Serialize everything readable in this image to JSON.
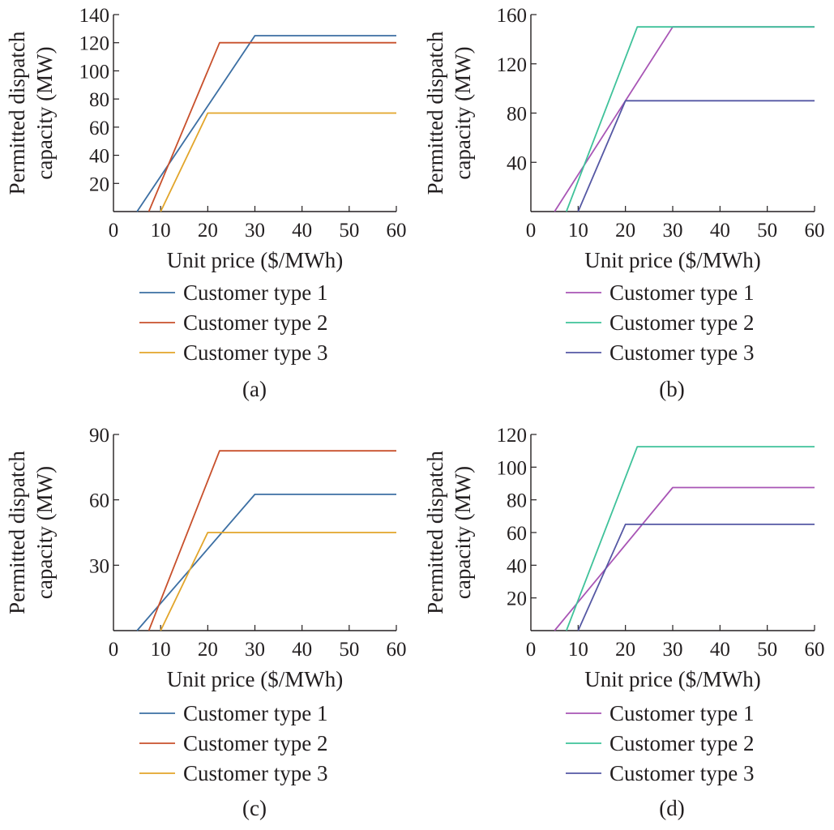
{
  "chart_data": [
    {
      "type": "line",
      "panel_label": "(a)",
      "xlabel": "Unit price ($/MWh)",
      "ylabel_lines": [
        "Permitted dispatch",
        "capacity (MW)"
      ],
      "xlim": [
        0,
        60
      ],
      "ylim": [
        0,
        140
      ],
      "xticks": [
        0,
        10,
        20,
        30,
        40,
        50,
        60
      ],
      "yticks": [
        20,
        40,
        60,
        80,
        100,
        120,
        140
      ],
      "grid": false,
      "legend_position": "below",
      "series": [
        {
          "name": "Customer type 1",
          "color": "#3c6fa3",
          "x": [
            5,
            30,
            60
          ],
          "y": [
            0,
            125,
            125
          ]
        },
        {
          "name": "Customer type 2",
          "color": "#c8502c",
          "x": [
            7.5,
            22.5,
            60
          ],
          "y": [
            0,
            120,
            120
          ]
        },
        {
          "name": "Customer type 3",
          "color": "#e2a52a",
          "x": [
            10,
            20,
            60
          ],
          "y": [
            0,
            70,
            70
          ]
        }
      ]
    },
    {
      "type": "line",
      "panel_label": "(b)",
      "xlabel": "Unit price ($/MWh)",
      "ylabel_lines": [
        "Permitted dispatch",
        "capacity (MW)"
      ],
      "xlim": [
        0,
        60
      ],
      "ylim": [
        0,
        160
      ],
      "xticks": [
        0,
        10,
        20,
        30,
        40,
        50,
        60
      ],
      "yticks": [
        40,
        80,
        120,
        160
      ],
      "grid": false,
      "legend_position": "below",
      "series": [
        {
          "name": "Customer type 1",
          "color": "#a855b5",
          "x": [
            5,
            30,
            60
          ],
          "y": [
            0,
            150,
            150
          ]
        },
        {
          "name": "Customer type 2",
          "color": "#3fc29a",
          "x": [
            7.5,
            22.5,
            60
          ],
          "y": [
            0,
            150,
            150
          ]
        },
        {
          "name": "Customer type 3",
          "color": "#5558a4",
          "x": [
            10,
            20,
            60
          ],
          "y": [
            0,
            90,
            90
          ]
        }
      ]
    },
    {
      "type": "line",
      "panel_label": "(c)",
      "xlabel": "Unit price ($/MWh)",
      "ylabel_lines": [
        "Permitted dispatch",
        "capacity (MW)"
      ],
      "xlim": [
        0,
        60
      ],
      "ylim": [
        0,
        90
      ],
      "xticks": [
        0,
        10,
        20,
        30,
        40,
        50,
        60
      ],
      "yticks": [
        30,
        60,
        90
      ],
      "grid": false,
      "legend_position": "below",
      "series": [
        {
          "name": "Customer type 1",
          "color": "#3c6fa3",
          "x": [
            5,
            30,
            60
          ],
          "y": [
            0,
            62.5,
            62.5
          ]
        },
        {
          "name": "Customer type 2",
          "color": "#c8502c",
          "x": [
            7.5,
            22.5,
            60
          ],
          "y": [
            0,
            82.5,
            82.5
          ]
        },
        {
          "name": "Customer type 3",
          "color": "#e2a52a",
          "x": [
            10,
            20,
            60
          ],
          "y": [
            0,
            45,
            45
          ]
        }
      ]
    },
    {
      "type": "line",
      "panel_label": "(d)",
      "xlabel": "Unit price ($/MWh)",
      "ylabel_lines": [
        "Permitted dispatch",
        "capacity (MW)"
      ],
      "xlim": [
        0,
        60
      ],
      "ylim": [
        0,
        120
      ],
      "xticks": [
        0,
        10,
        20,
        30,
        40,
        50,
        60
      ],
      "yticks": [
        20,
        40,
        60,
        80,
        100,
        120
      ],
      "grid": false,
      "legend_position": "below",
      "series": [
        {
          "name": "Customer type 1",
          "color": "#a855b5",
          "x": [
            5,
            30,
            60
          ],
          "y": [
            0,
            87.5,
            87.5
          ]
        },
        {
          "name": "Customer type 2",
          "color": "#3fc29a",
          "x": [
            7.5,
            22.5,
            60
          ],
          "y": [
            0,
            112.5,
            112.5
          ]
        },
        {
          "name": "Customer type 3",
          "color": "#5558a4",
          "x": [
            10,
            20,
            60
          ],
          "y": [
            0,
            65,
            65
          ]
        }
      ]
    }
  ]
}
